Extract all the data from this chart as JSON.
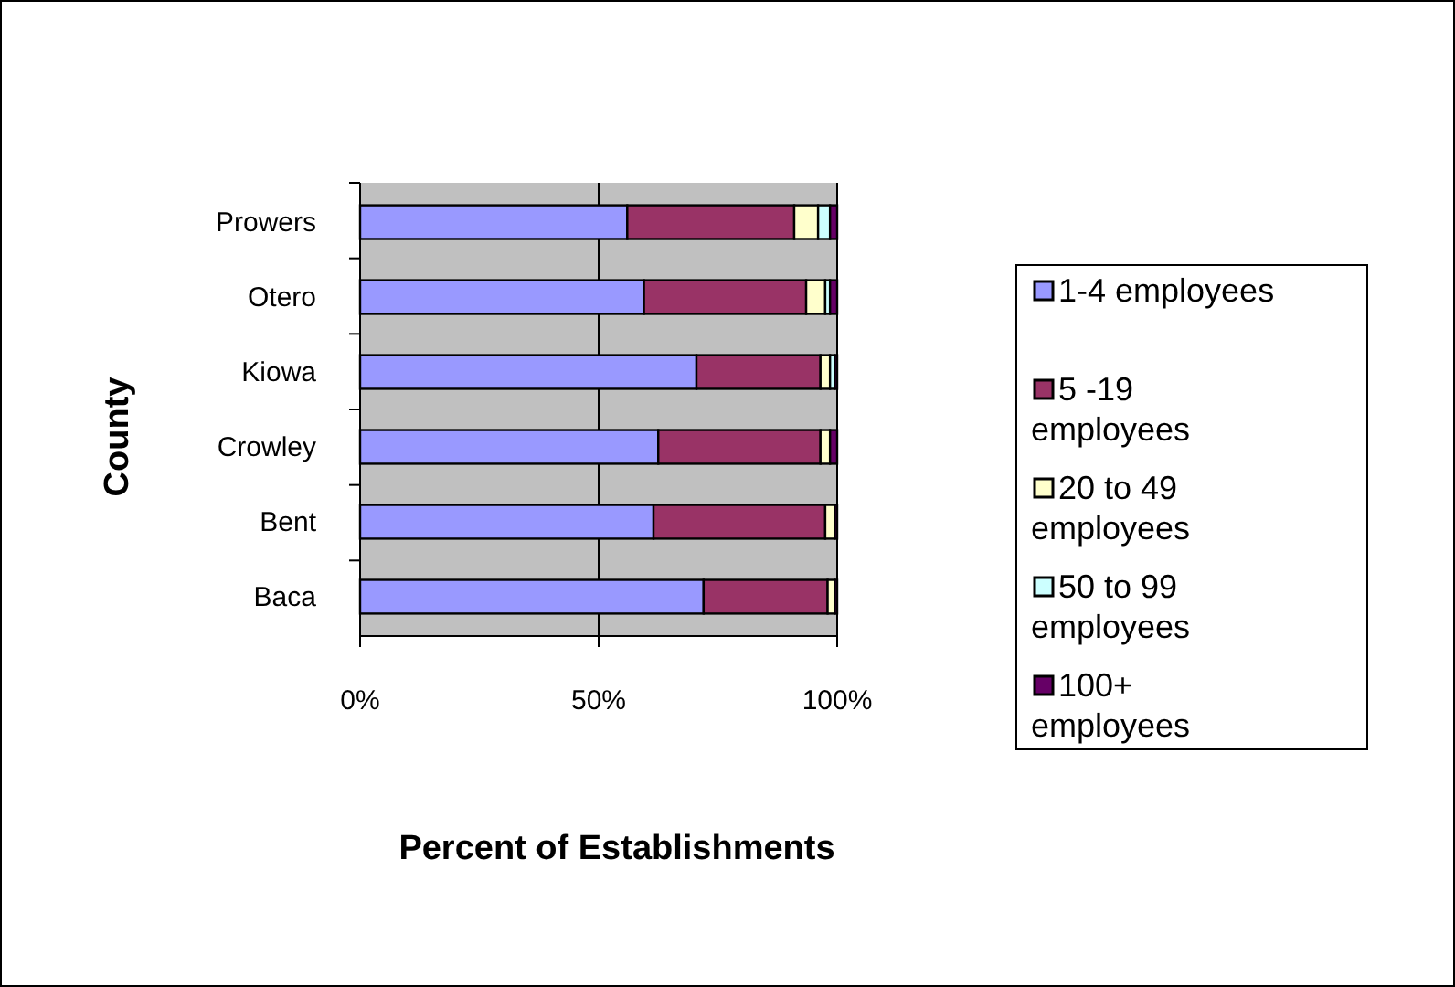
{
  "chart_data": {
    "type": "bar",
    "orientation": "horizontal",
    "stacked": true,
    "xlabel": "Percent of Establishments",
    "ylabel": "County",
    "categories": [
      "Prowers",
      "Otero",
      "Kiowa",
      "Crowley",
      "Bent",
      "Baca"
    ],
    "series": [
      {
        "name": "1-4 employees",
        "color": "#9999ff",
        "values": [
          56,
          59.5,
          70.5,
          62.5,
          61.5,
          72
        ]
      },
      {
        "name": "5 -19 employees",
        "color": "#993366",
        "values": [
          35,
          34,
          26,
          34,
          36,
          26
        ]
      },
      {
        "name": "20 to 49 employees",
        "color": "#ffffcc",
        "values": [
          5,
          4,
          2,
          2,
          2,
          1.5
        ]
      },
      {
        "name": "50 to 99 employees",
        "color": "#ccffff",
        "values": [
          2.5,
          1,
          1,
          0,
          0,
          0
        ]
      },
      {
        "name": "100+ employees",
        "color": "#660066",
        "values": [
          1.5,
          1.5,
          0.5,
          1.5,
          0.5,
          0.5
        ]
      }
    ],
    "xlim": [
      0,
      100
    ],
    "xticks": [
      {
        "value": 0,
        "label": "0%"
      },
      {
        "value": 50,
        "label": "50%"
      },
      {
        "value": 100,
        "label": "100%"
      }
    ],
    "grid": "x",
    "legend": "right"
  }
}
